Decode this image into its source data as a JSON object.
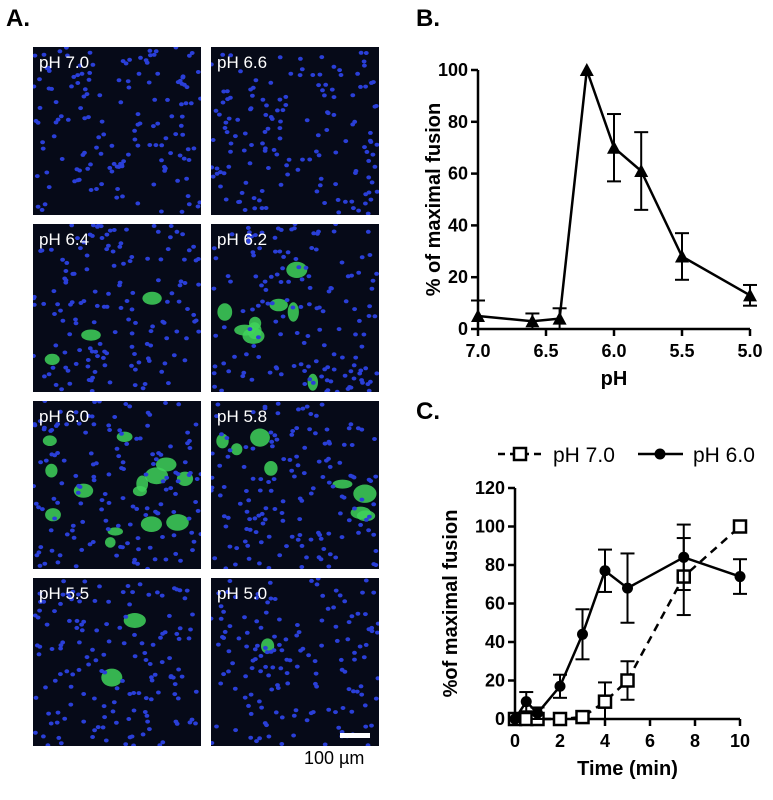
{
  "panel_labels": {
    "a": "A.",
    "b": "B.",
    "c": "C."
  },
  "micrographs": {
    "tiles": [
      {
        "label": "pH 7.0",
        "green_level": 0
      },
      {
        "label": "pH 6.6",
        "green_level": 0
      },
      {
        "label": "pH 6.4",
        "green_level": 0.2
      },
      {
        "label": "pH 6.2",
        "green_level": 0.65
      },
      {
        "label": "pH 6.0",
        "green_level": 1
      },
      {
        "label": "pH 5.8",
        "green_level": 0.55
      },
      {
        "label": "pH 5.5",
        "green_level": 0.12
      },
      {
        "label": "pH 5.0",
        "green_level": 0.05
      }
    ],
    "scale_bar_label": "100 µm",
    "colors": {
      "nuclei": "#2a3fd8",
      "fusion": "#3fd25a",
      "background": "#060a18"
    }
  },
  "chart_data": [
    {
      "type": "line",
      "panel": "B",
      "xlabel": "pH",
      "ylabel": "% of maximal fusion",
      "xlim": [
        7.0,
        5.0
      ],
      "ylim": [
        0,
        100
      ],
      "x_ticks": [
        "7.0",
        "6.5",
        "6.0",
        "5.5",
        "5.0"
      ],
      "y_ticks": [
        "0",
        "20",
        "40",
        "60",
        "80",
        "100"
      ],
      "marker": "triangle",
      "series": [
        {
          "x": [
            7.0,
            6.6,
            6.4,
            6.2,
            6.0,
            5.8,
            5.5,
            5.0
          ],
          "y": [
            5,
            3,
            4,
            100,
            70,
            61,
            28,
            13
          ],
          "err": [
            6,
            3,
            4,
            0,
            13,
            15,
            9,
            4
          ]
        }
      ]
    },
    {
      "type": "line",
      "panel": "C",
      "xlabel": "Time  (min)",
      "ylabel": "%of maximal fusion",
      "xlim": [
        0,
        10
      ],
      "ylim": [
        0,
        120
      ],
      "x_ticks": [
        "0",
        "2",
        "4",
        "6",
        "8",
        "10"
      ],
      "y_ticks": [
        "0",
        "20",
        "40",
        "60",
        "80",
        "100",
        "120"
      ],
      "legend_position": "top",
      "series": [
        {
          "name": "pH 7.0",
          "marker": "open-square",
          "style": "dashed",
          "x": [
            0,
            0.5,
            1,
            2,
            3,
            4,
            5,
            7.5,
            10
          ],
          "y": [
            0,
            0,
            0,
            0,
            1,
            9,
            20,
            74,
            100
          ],
          "err": [
            0,
            0,
            0,
            0,
            0,
            10,
            10,
            20,
            0
          ]
        },
        {
          "name": "pH 6.0",
          "marker": "filled-circle",
          "style": "solid",
          "x": [
            0,
            0.5,
            1,
            2,
            3,
            4,
            5,
            7.5,
            10
          ],
          "y": [
            0,
            9,
            3,
            17,
            44,
            77,
            68,
            84,
            74
          ],
          "err": [
            0,
            5,
            3,
            6,
            13,
            11,
            18,
            17,
            9
          ]
        }
      ]
    }
  ]
}
